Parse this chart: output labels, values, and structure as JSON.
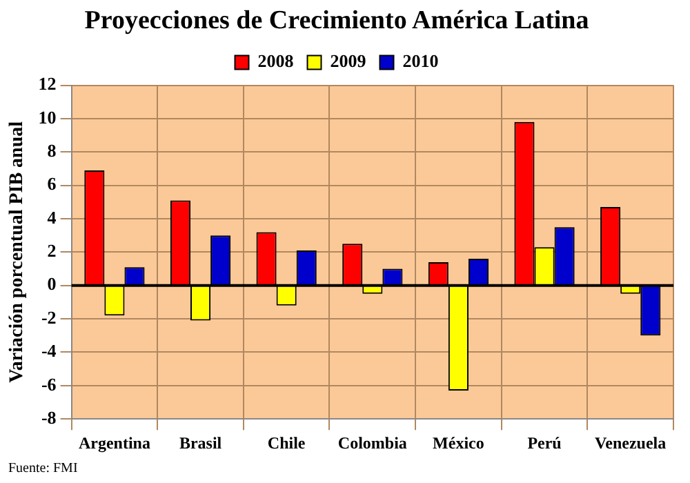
{
  "chart_data": {
    "type": "bar",
    "title": "Proyecciones de Crecimiento América Latina",
    "ylabel": "Variación porcentual PIB anual",
    "categories": [
      "Argentina",
      "Brasil",
      "Chile",
      "Colombia",
      "México",
      "Perú",
      "Venezuela"
    ],
    "series": [
      {
        "name": "2008",
        "color": "#ff0000",
        "values": [
          6.9,
          5.1,
          3.2,
          2.5,
          1.4,
          9.8,
          4.7
        ]
      },
      {
        "name": "2009",
        "color": "#ffff00",
        "values": [
          -1.8,
          -2.1,
          -1.2,
          -0.5,
          -6.3,
          2.3,
          -0.5
        ]
      },
      {
        "name": "2010",
        "color": "#0000cc",
        "values": [
          1.1,
          3.0,
          2.1,
          1.0,
          1.6,
          3.5,
          -3.0
        ]
      }
    ],
    "ylim": [
      -8,
      12
    ],
    "yticks": [
      -8,
      -6,
      -4,
      -2,
      0,
      2,
      4,
      6,
      8,
      10,
      12
    ],
    "grid": true,
    "legend": "top",
    "annotations": [
      "Fuente: FMI"
    ]
  }
}
